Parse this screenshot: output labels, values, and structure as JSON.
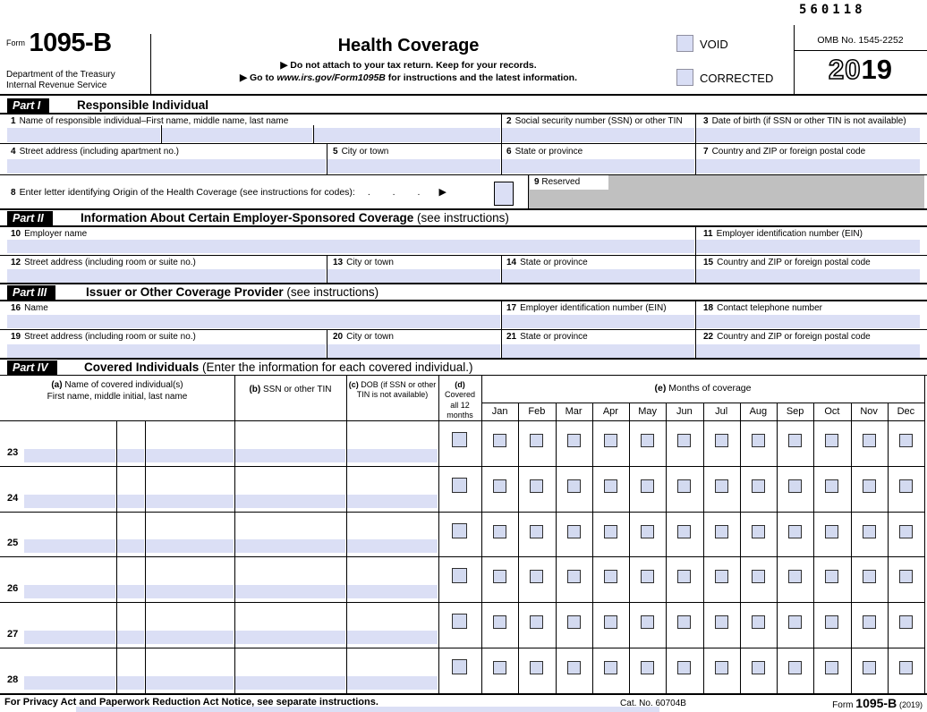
{
  "serial": "560118",
  "header": {
    "form_word": "Form",
    "form_number": "1095-B",
    "agency_line1": "Department of the Treasury",
    "agency_line2": "Internal Revenue Service",
    "title": "Health Coverage",
    "note1": "▶ Do not attach to your tax return. Keep for your records.",
    "note2_prefix": "▶ Go to ",
    "note2_link": "www.irs.gov/Form1095B",
    "note2_suffix": " for instructions and the latest information.",
    "void_label": "VOID",
    "corrected_label": "CORRECTED",
    "omb_label": "OMB No. 1545-2252",
    "year_prefix": "20",
    "year_suffix": "19"
  },
  "parts": {
    "part1": {
      "chip": "Part I",
      "title": "Responsible Individual",
      "note": ""
    },
    "part2": {
      "chip": "Part II",
      "title": "Information About Certain Employer-Sponsored Coverage",
      "note": " (see instructions)"
    },
    "part3": {
      "chip": "Part III",
      "title": "Issuer or Other Coverage Provider",
      "note": " (see instructions)"
    },
    "part4": {
      "chip": "Part IV",
      "title": "Covered Individuals",
      "note": " (Enter the information for each covered individual.)"
    }
  },
  "fields": {
    "f1": {
      "num": "1",
      "label": "Name of responsible individual–First name, middle name, last name"
    },
    "f2": {
      "num": "2",
      "label": "Social security number (SSN) or other TIN"
    },
    "f3": {
      "num": "3",
      "label": "Date of birth (if SSN or other TIN is not available)"
    },
    "f4": {
      "num": "4",
      "label": "Street address (including apartment no.)"
    },
    "f5": {
      "num": "5",
      "label": "City or town"
    },
    "f6": {
      "num": "6",
      "label": "State or province"
    },
    "f7": {
      "num": "7",
      "label": "Country and ZIP or foreign postal code"
    },
    "f8": {
      "num": "8",
      "label": "Enter letter identifying Origin of the Health Coverage (see instructions for codes):",
      "dots": ". . .",
      "arrow": "▶"
    },
    "f9": {
      "num": "9",
      "label": "Reserved"
    },
    "f10": {
      "num": "10",
      "label": "Employer name"
    },
    "f11": {
      "num": "11",
      "label": "Employer identification number (EIN)"
    },
    "f12": {
      "num": "12",
      "label": "Street address (including room or suite no.)"
    },
    "f13": {
      "num": "13",
      "label": "City or town"
    },
    "f14": {
      "num": "14",
      "label": "State or province"
    },
    "f15": {
      "num": "15",
      "label": "Country and ZIP or foreign postal code"
    },
    "f16": {
      "num": "16",
      "label": "Name"
    },
    "f17": {
      "num": "17",
      "label": "Employer identification number (EIN)"
    },
    "f18": {
      "num": "18",
      "label": "Contact telephone number"
    },
    "f19": {
      "num": "19",
      "label": "Street address (including room or suite no.)"
    },
    "f20": {
      "num": "20",
      "label": "City or town"
    },
    "f21": {
      "num": "21",
      "label": "State or province"
    },
    "f22": {
      "num": "22",
      "label": "Country and ZIP or foreign postal code"
    }
  },
  "part4_table": {
    "columns": {
      "a_tag": "(a)",
      "a_line1": "Name of covered individual(s)",
      "a_line2": "First name, middle initial, last name",
      "b_tag": "(b)",
      "b_label": "SSN or other TIN",
      "c_tag": "(c)",
      "c_line1": "DOB (if SSN or other",
      "c_line2": "TIN is not available)",
      "d_tag": "(d)",
      "d_line1": "Covered",
      "d_line2": "all 12 months",
      "e_tag": "(e)",
      "e_label": "Months of coverage"
    },
    "months": [
      "Jan",
      "Feb",
      "Mar",
      "Apr",
      "May",
      "Jun",
      "Jul",
      "Aug",
      "Sep",
      "Oct",
      "Nov",
      "Dec"
    ],
    "row_numbers": [
      "23",
      "24",
      "25",
      "26",
      "27",
      "28"
    ]
  },
  "footer": {
    "privacy": "For Privacy Act and Paperwork Reduction Act Notice, see separate instructions.",
    "cat": "Cat. No. 60704B",
    "form_word": "Form",
    "form_number": "1095-B",
    "year": "(2019)"
  },
  "colors": {
    "input_blue": "#dbdff5",
    "checkbox_blue": "#d3daf0",
    "reserved_gray": "#c0c0c0"
  }
}
